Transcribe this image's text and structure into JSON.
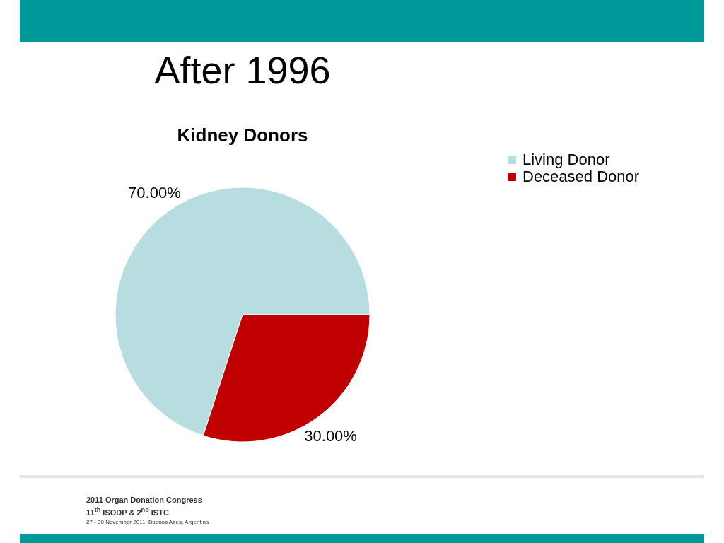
{
  "chart_data": {
    "type": "pie",
    "title": "After 1996",
    "subtitle": "Kidney Donors",
    "categories": [
      "Living Donor",
      "Deceased Donor"
    ],
    "values": [
      70,
      30
    ],
    "value_labels": [
      "70.00%",
      "30.00%"
    ],
    "colors": [
      "#b8dde1",
      "#c00000"
    ],
    "legend": "right",
    "annotations": [
      "2011 Organ Donation Congress",
      "11$^{th}$ ISODP & 2$^{nd}$ ISTC",
      "27 - 30 November 2011, Buenos Aires, Argentina"
    ]
  }
}
